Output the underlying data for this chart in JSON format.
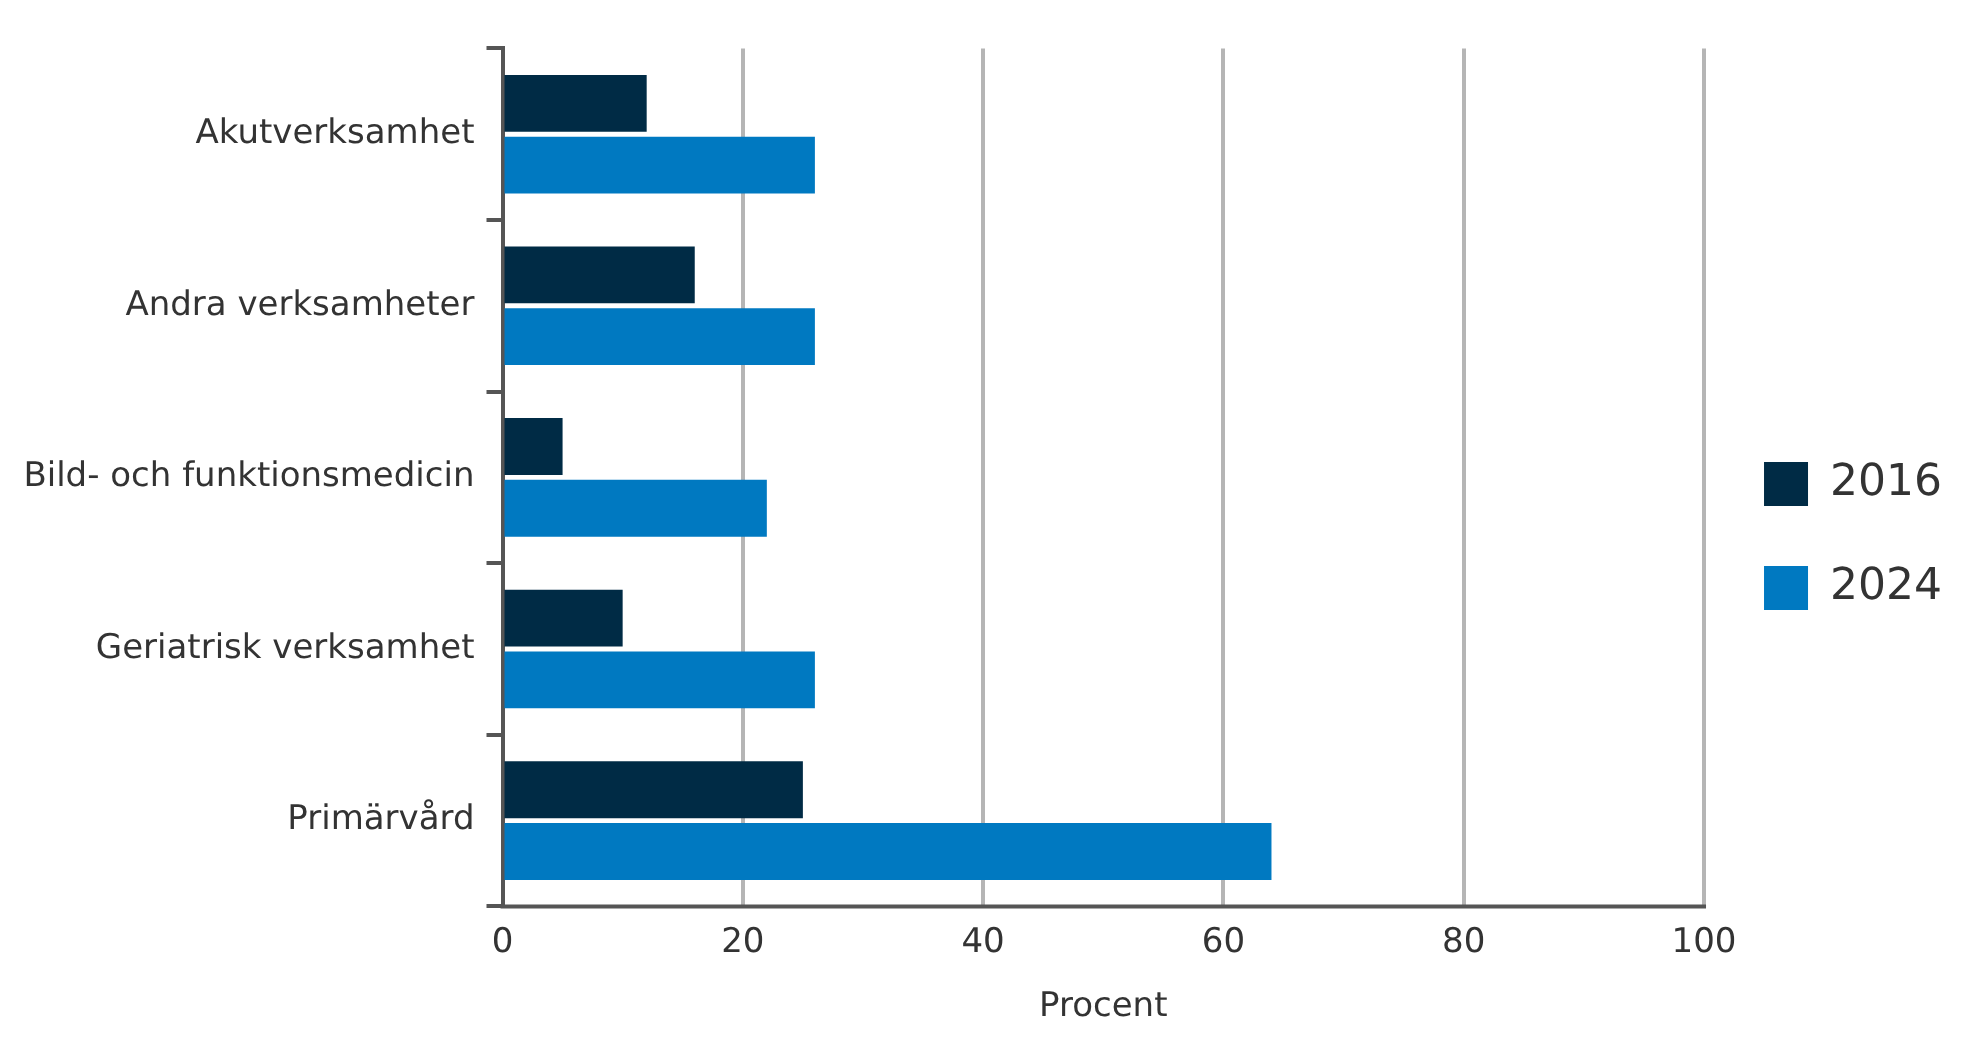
{
  "chart_data": {
    "type": "bar",
    "orientation": "horizontal",
    "categories": [
      "Akutverksamhet",
      "Andra verksamheter",
      "Bild- och funktionsmedicin",
      "Geriatrisk verksamhet",
      "Primärvård"
    ],
    "series": [
      {
        "name": "2016",
        "color": "#002b45",
        "values": [
          12,
          16,
          5,
          10,
          25
        ]
      },
      {
        "name": "2024",
        "color": "#0079c1",
        "values": [
          26,
          26,
          22,
          26,
          64
        ]
      }
    ],
    "xlabel": "Procent",
    "xlim": [
      0,
      100
    ],
    "xticks": [
      0,
      20,
      40,
      60,
      80,
      100
    ],
    "grid": "x",
    "legend": "right"
  }
}
